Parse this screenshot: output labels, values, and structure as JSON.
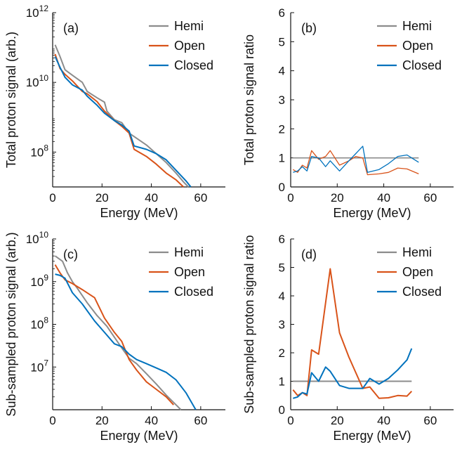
{
  "colors": {
    "hemi": "#8c8c8c",
    "open": "#d95319",
    "closed": "#0072bd",
    "axis": "#111111"
  },
  "chart_data": [
    {
      "id": "a",
      "panel_label": "(a)",
      "type": "line",
      "yscale": "log",
      "xlabel": "Energy (MeV)",
      "ylabel": "Total proton signal (arb.)",
      "xlim": [
        0,
        70
      ],
      "xticks": [
        0,
        20,
        40,
        60
      ],
      "ylim_exp": [
        7,
        12
      ],
      "yticks_exp": [
        8,
        10,
        12
      ],
      "legend_position": "top-right",
      "series": [
        {
          "name": "Hemi",
          "color_key": "hemi",
          "x": [
            1,
            3,
            5,
            8,
            12,
            14,
            18,
            21,
            22,
            25,
            28,
            31,
            34,
            38,
            42,
            46,
            50,
            53,
            55
          ],
          "y": [
            120000000000.0,
            55000000000.0,
            23000000000.0,
            16000000000.0,
            10000000000.0,
            5500000000.0,
            3600000000.0,
            2700000000.0,
            1500000000.0,
            850000000.0,
            700000000.0,
            350000000.0,
            250000000.0,
            160000000.0,
            90000000.0,
            50000000.0,
            25000000.0,
            14000000.0,
            10000000.0
          ]
        },
        {
          "name": "Open",
          "color_key": "open",
          "x": [
            1,
            3,
            5,
            8,
            12,
            14,
            18,
            21,
            25,
            28,
            31,
            33,
            38,
            42,
            46,
            50,
            53
          ],
          "y": [
            65000000000.0,
            25000000000.0,
            17000000000.0,
            11000000000.0,
            5500000000.0,
            4700000000.0,
            2800000000.0,
            1500000000.0,
            800000000.0,
            550000000.0,
            350000000.0,
            120000000.0,
            75000000.0,
            45000000.0,
            25000000.0,
            16000000.0,
            10000000.0
          ]
        },
        {
          "name": "Closed",
          "color_key": "closed",
          "x": [
            1,
            3,
            5,
            8,
            12,
            14,
            18,
            21,
            25,
            28,
            31,
            33,
            38,
            42,
            46,
            50,
            54,
            56
          ],
          "y": [
            55000000000.0,
            27000000000.0,
            14000000000.0,
            8500000000.0,
            6000000000.0,
            4000000000.0,
            2200000000.0,
            1300000000.0,
            800000000.0,
            600000000.0,
            400000000.0,
            150000000.0,
            120000000.0,
            90000000.0,
            60000000.0,
            30000000.0,
            15000000.0,
            10000000.0
          ]
        }
      ]
    },
    {
      "id": "b",
      "panel_label": "(b)",
      "type": "line",
      "yscale": "linear",
      "xlabel": "Energy (MeV)",
      "ylabel": "Total proton signal ratio",
      "xlim": [
        0,
        70
      ],
      "xticks": [
        0,
        20,
        40,
        60
      ],
      "ylim": [
        0,
        6
      ],
      "yticks": [
        0,
        1,
        2,
        3,
        4,
        5,
        6
      ],
      "legend_position": "top-right",
      "series": [
        {
          "name": "Hemi",
          "color_key": "hemi",
          "x": [
            1,
            55
          ],
          "y": [
            1.0,
            1.0
          ]
        },
        {
          "name": "Open",
          "color_key": "open",
          "x": [
            1,
            3,
            5,
            7,
            9,
            12,
            15,
            17,
            21,
            25,
            28,
            31,
            33,
            38,
            42,
            46,
            50,
            55
          ],
          "y": [
            0.6,
            0.5,
            0.75,
            0.65,
            1.25,
            0.95,
            1.05,
            1.25,
            0.75,
            0.9,
            1.05,
            1.0,
            0.42,
            0.45,
            0.5,
            0.65,
            0.62,
            0.45
          ]
        },
        {
          "name": "Closed",
          "color_key": "closed",
          "x": [
            1,
            3,
            5,
            7,
            9,
            12,
            15,
            17,
            21,
            25,
            28,
            31,
            33,
            38,
            42,
            46,
            50,
            52,
            55
          ],
          "y": [
            0.5,
            0.55,
            0.7,
            0.55,
            1.05,
            1.0,
            0.7,
            0.9,
            0.55,
            0.9,
            1.15,
            1.4,
            0.5,
            0.6,
            0.8,
            1.05,
            1.1,
            1.0,
            0.85
          ]
        }
      ]
    },
    {
      "id": "c",
      "panel_label": "(c)",
      "type": "line",
      "yscale": "log",
      "xlabel": "Energy (MeV)",
      "ylabel": "Sub-sampled proton signal (arb.)",
      "xlim": [
        0,
        70
      ],
      "xticks": [
        0,
        20,
        40,
        60
      ],
      "ylim_exp": [
        6,
        10
      ],
      "yticks_exp": [
        7,
        8,
        9,
        10
      ],
      "legend_position": "top-right",
      "series": [
        {
          "name": "Hemi",
          "color_key": "hemi",
          "x": [
            1,
            4,
            6,
            8,
            10,
            14,
            18,
            22,
            25,
            28,
            31,
            34,
            38,
            42,
            46,
            50,
            52
          ],
          "y": [
            4000000000.0,
            3000000000.0,
            1600000000.0,
            1000000000.0,
            700000000.0,
            320000000.0,
            160000000.0,
            90000000.0,
            50000000.0,
            28000000.0,
            16000000.0,
            12000000.0,
            7000000.0,
            4000000.0,
            2200000.0,
            1300000.0,
            1000000.0
          ]
        },
        {
          "name": "Open",
          "color_key": "open",
          "x": [
            1,
            3,
            5,
            8,
            12,
            17,
            21,
            25,
            28,
            31,
            34,
            38,
            42,
            46,
            49
          ],
          "y": [
            2500000000.0,
            1600000000.0,
            1100000000.0,
            900000000.0,
            650000000.0,
            420000000.0,
            140000000.0,
            65000000.0,
            40000000.0,
            15000000.0,
            8500000.0,
            4500000.0,
            3000000.0,
            2000000.0,
            1300000.0
          ]
        },
        {
          "name": "Closed",
          "color_key": "closed",
          "x": [
            1,
            3,
            5,
            8,
            12,
            17,
            21,
            25,
            28,
            31,
            34,
            38,
            42,
            46,
            50,
            54,
            58
          ],
          "y": [
            1500000000.0,
            1400000000.0,
            1200000000.0,
            550000000.0,
            300000000.0,
            120000000.0,
            65000000.0,
            35000000.0,
            30000000.0,
            20000000.0,
            15000000.0,
            12000000.0,
            9500000.0,
            7500000.0,
            5000000.0,
            2500000.0,
            1000000.0
          ]
        }
      ]
    },
    {
      "id": "d",
      "panel_label": "(d)",
      "type": "line",
      "yscale": "linear",
      "xlabel": "Energy (MeV)",
      "ylabel": "Sub-sampled proton signal ratio",
      "xlim": [
        0,
        70
      ],
      "xticks": [
        0,
        20,
        40,
        60
      ],
      "ylim": [
        0,
        6
      ],
      "yticks": [
        0,
        1,
        2,
        3,
        4,
        5,
        6
      ],
      "legend_position": "top-right",
      "series": [
        {
          "name": "Hemi",
          "color_key": "hemi",
          "x": [
            1,
            52
          ],
          "y": [
            1.0,
            1.0
          ]
        },
        {
          "name": "Open",
          "color_key": "open",
          "x": [
            1,
            3,
            5,
            7,
            9,
            12,
            17,
            21,
            25,
            28,
            31,
            34,
            38,
            42,
            46,
            50,
            52
          ],
          "y": [
            0.7,
            0.5,
            0.6,
            0.5,
            2.1,
            1.95,
            4.95,
            2.7,
            1.85,
            1.3,
            0.75,
            0.8,
            0.4,
            0.42,
            0.5,
            0.48,
            0.65
          ]
        },
        {
          "name": "Closed",
          "color_key": "closed",
          "x": [
            1,
            3,
            5,
            7,
            9,
            12,
            15,
            17,
            21,
            25,
            28,
            31,
            34,
            38,
            42,
            46,
            50,
            52
          ],
          "y": [
            0.4,
            0.45,
            0.6,
            0.55,
            1.3,
            1.0,
            1.5,
            1.35,
            0.85,
            0.75,
            0.75,
            0.75,
            1.1,
            0.9,
            1.1,
            1.4,
            1.75,
            2.15
          ]
        }
      ]
    }
  ]
}
